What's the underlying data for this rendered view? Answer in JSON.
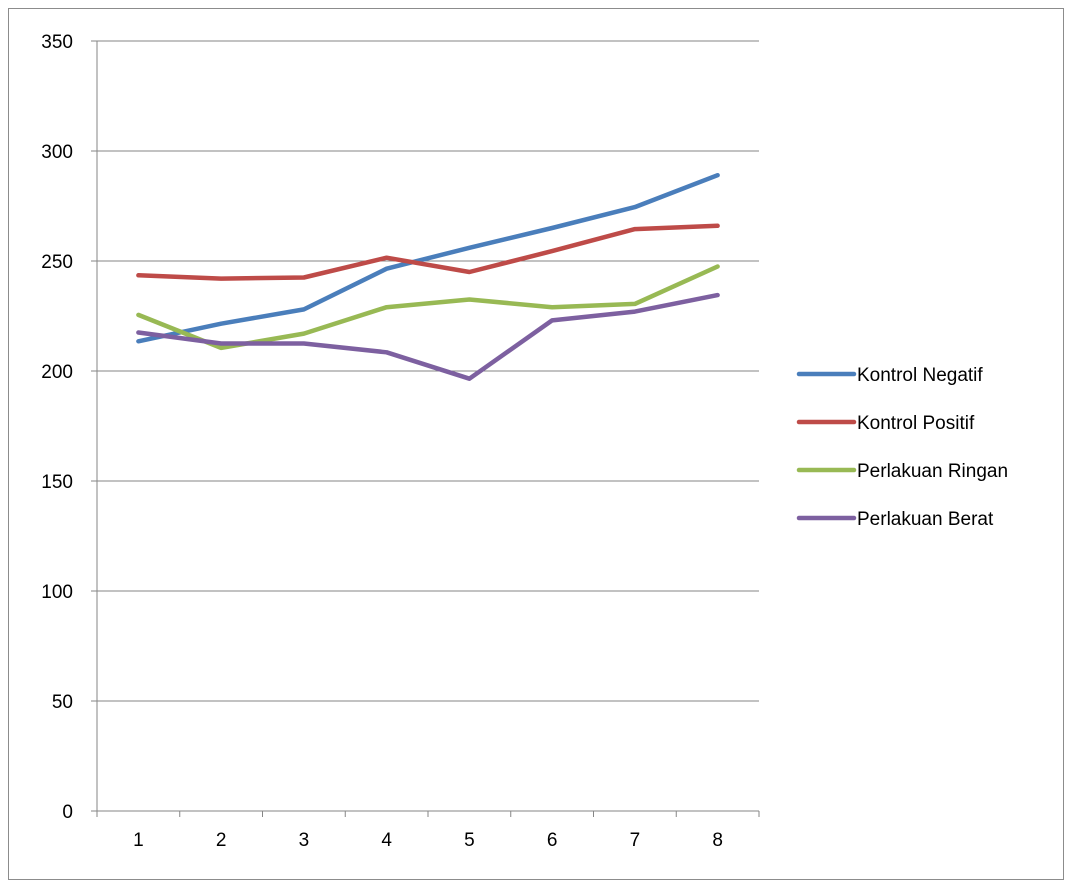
{
  "chart_data": {
    "type": "line",
    "title": "",
    "xlabel": "",
    "ylabel": "",
    "categories": [
      "1",
      "2",
      "3",
      "4",
      "5",
      "6",
      "7",
      "8"
    ],
    "ylim": [
      0,
      350
    ],
    "yticks": [
      0,
      50,
      100,
      150,
      200,
      250,
      300,
      350
    ],
    "grid": "horizontal",
    "legend_position": "right",
    "series": [
      {
        "name": "Kontrol Negatif",
        "color": "#4a7ebb",
        "values": [
          213.5,
          221.5,
          228,
          246.5,
          256,
          265,
          274.5,
          289
        ]
      },
      {
        "name": "Kontrol Positif",
        "color": "#be4b48",
        "values": [
          243.5,
          242,
          242.5,
          251.5,
          245,
          254.5,
          264.5,
          266
        ]
      },
      {
        "name": "Perlakuan Ringan",
        "color": "#98b954",
        "values": [
          225.5,
          210.5,
          217,
          229,
          232.5,
          229,
          230.5,
          247.5
        ]
      },
      {
        "name": "Perlakuan Berat",
        "color": "#7d60a0",
        "values": [
          217.5,
          212.5,
          212.5,
          208.5,
          196.5,
          223,
          227,
          234.5
        ]
      }
    ]
  }
}
